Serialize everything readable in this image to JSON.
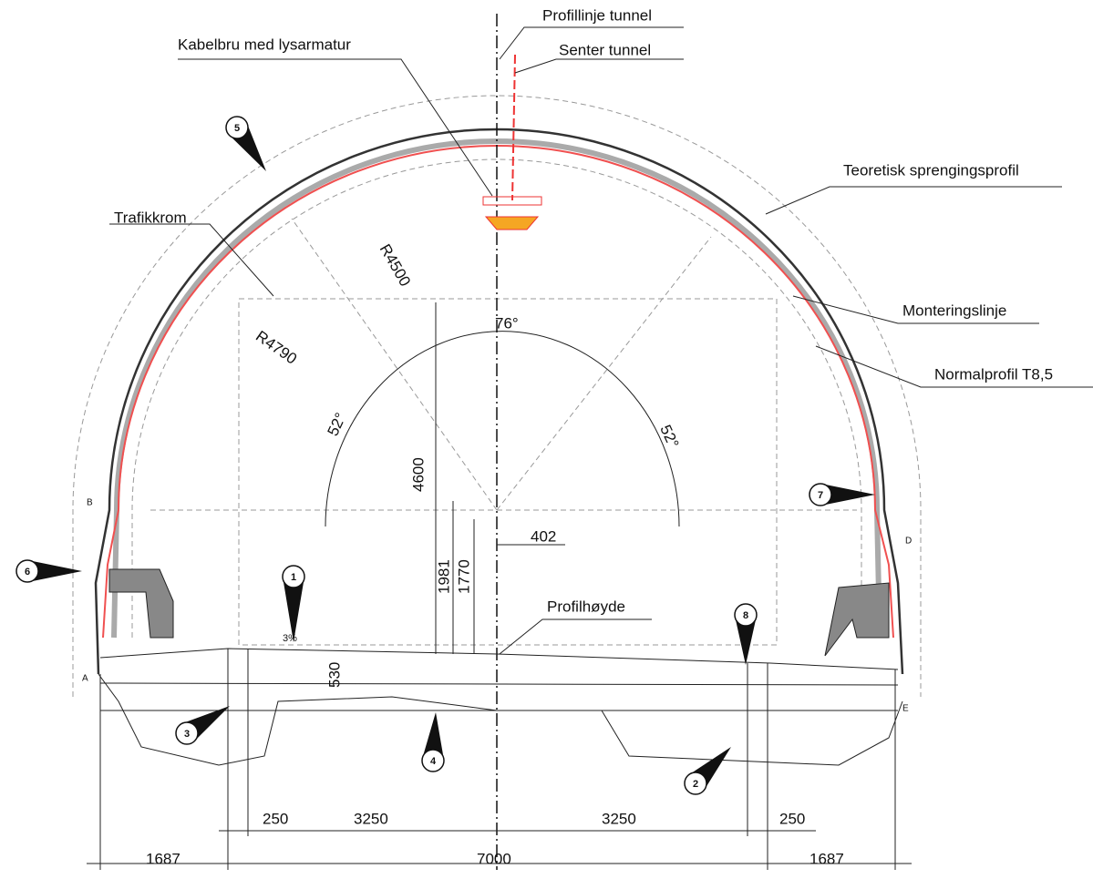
{
  "labels": {
    "profile_line": "Profillinje tunnel",
    "center": "Senter tunnel",
    "cable_bridge": "Kabelbru med lysarmatur",
    "blast_profile": "Teoretisk sprengingsprofil",
    "traffic_space": "Trafikkrom",
    "mounting_line": "Monteringslinje",
    "normal_profile": "Normalprofil T8,5",
    "profile_height": "Profilhøyde"
  },
  "dimensions": {
    "r_inner": "R4500",
    "r_outer": "R4790",
    "angle_top": "76°",
    "angle_left": "52°",
    "angle_right": "52°",
    "height": "4600",
    "offset": "402",
    "h1": "1981",
    "h2": "1770",
    "slope": "3%",
    "depth": "530",
    "lane_left_edge": "250",
    "lane_left": "3250",
    "lane_right": "3250",
    "lane_right_edge": "250",
    "side_left": "1687",
    "total": "7000",
    "side_right": "1687"
  },
  "markers": [
    "1",
    "2",
    "3",
    "4",
    "5",
    "6",
    "7",
    "8"
  ],
  "letters": [
    "A",
    "B",
    "D",
    "E"
  ]
}
